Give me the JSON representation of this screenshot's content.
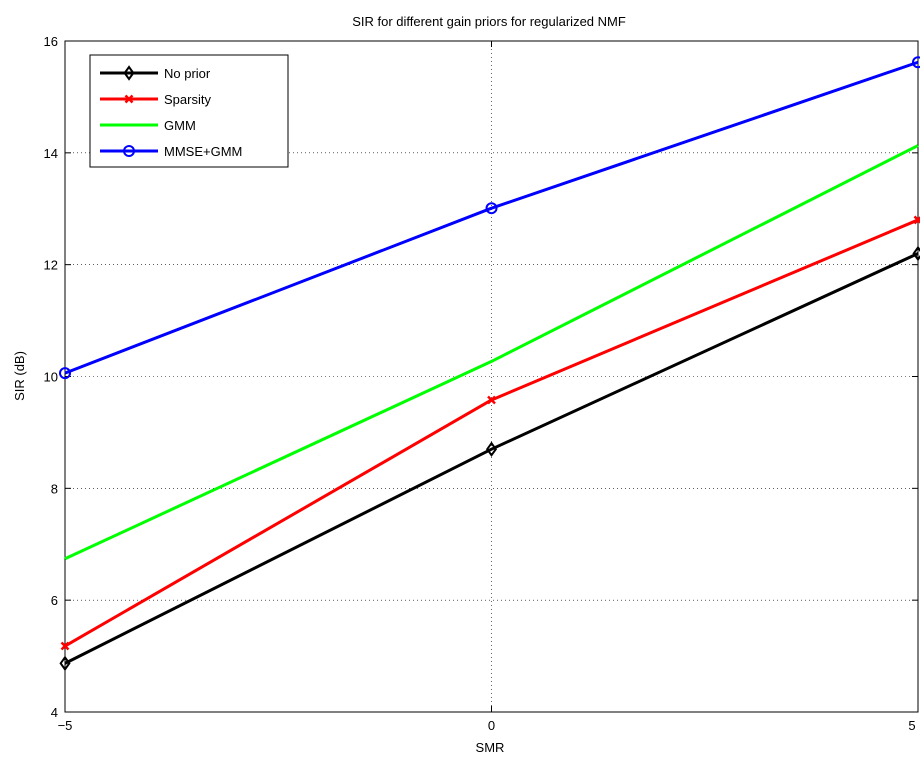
{
  "chart_data": {
    "type": "line",
    "title": "SIR for different gain priors for regularized NMF",
    "xlabel": "SMR",
    "ylabel": "SIR (dB)",
    "x": [
      -5,
      0,
      5
    ],
    "xlim": [
      -5,
      5
    ],
    "ylim": [
      4,
      16
    ],
    "xticks": [
      "−5",
      "0",
      "5"
    ],
    "yticks": [
      "4",
      "6",
      "8",
      "10",
      "12",
      "14",
      "16"
    ],
    "grid": "dotted",
    "legend_position": "top-left",
    "series": [
      {
        "name": "No prior",
        "values": [
          4.87,
          8.7,
          12.2
        ],
        "color": "#000000",
        "marker": "diamond"
      },
      {
        "name": "Sparsity",
        "values": [
          5.18,
          9.58,
          12.8
        ],
        "color": "#ff0000",
        "marker": "x"
      },
      {
        "name": "GMM",
        "values": [
          6.74,
          10.27,
          14.13
        ],
        "color": "#00ff00",
        "marker": "none"
      },
      {
        "name": "MMSE+GMM",
        "values": [
          10.06,
          13.01,
          15.62
        ],
        "color": "#0000ff",
        "marker": "circle"
      }
    ]
  }
}
